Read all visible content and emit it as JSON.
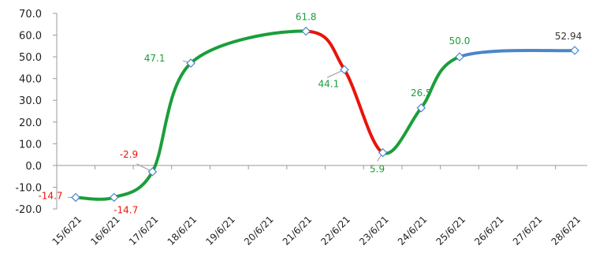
{
  "chart_data": {
    "type": "line",
    "title": "",
    "xlabel": "",
    "ylabel": "",
    "ylim": [
      -20,
      70
    ],
    "yticks": [
      "70.0",
      "60.0",
      "50.0",
      "40.0",
      "30.0",
      "20.0",
      "10.0",
      "0.0",
      "-10.0",
      "-20.0"
    ],
    "categories": [
      "15/6/21",
      "16/6/21",
      "17/6/21",
      "18/6/21",
      "19/6/21",
      "20/6/21",
      "21/6/21",
      "22/6/21",
      "23/6/21",
      "24/6/21",
      "25/6/21",
      "26/6/21",
      "27/6/21",
      "28/6/21"
    ],
    "points": [
      {
        "x": "15/6/21",
        "y": -14.7,
        "label": "-14.7"
      },
      {
        "x": "16/6/21",
        "y": -14.7,
        "label": "-14.7"
      },
      {
        "x": "17/6/21",
        "y": -2.9,
        "label": "-2.9"
      },
      {
        "x": "18/6/21",
        "y": 47.1,
        "label": "47.1"
      },
      {
        "x": "21/6/21",
        "y": 61.8,
        "label": "61.8"
      },
      {
        "x": "22/6/21",
        "y": 44.1,
        "label": "44.1"
      },
      {
        "x": "23/6/21",
        "y": 5.9,
        "label": "5.9"
      },
      {
        "x": "24/6/21",
        "y": 26.5,
        "label": "26.5"
      },
      {
        "x": "25/6/21",
        "y": 50.0,
        "label": "50.0"
      },
      {
        "x": "28/6/21",
        "y": 52.94,
        "label": "52.94"
      }
    ],
    "segment_colors": [
      "#1a9e3a",
      "#1a9e3a",
      "#1a9e3a",
      "#1a9e3a",
      "#e8140c",
      "#e8140c",
      "#1a9e3a",
      "#1a9e3a",
      "#4a86c8"
    ],
    "label_colors": {
      "positive": "#1a9e3a",
      "negative": "#e8140c",
      "last": "#333333"
    },
    "grid": false,
    "legend": "none"
  }
}
